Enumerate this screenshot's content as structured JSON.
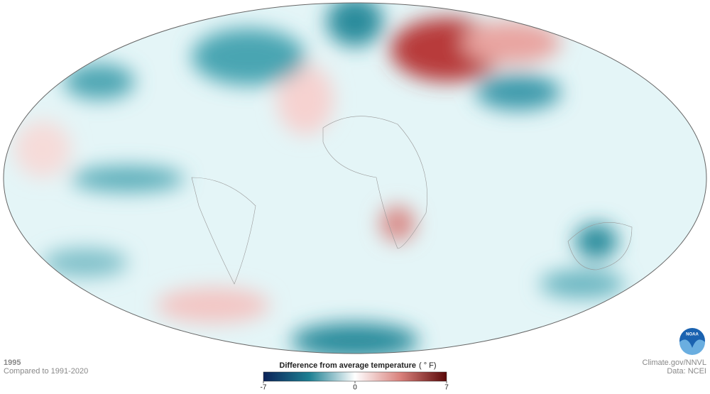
{
  "map": {
    "year": "1995",
    "baseline": "Compared to 1991-2020",
    "legend": {
      "title": "Difference from average temperature",
      "unit": "( ° F)",
      "min": -7,
      "max": 7,
      "ticks": [
        -7,
        0,
        7
      ]
    }
  },
  "credits": {
    "source": "Climate.gov/NNVL",
    "data": "Data: NCEI"
  },
  "logo": "NOAA"
}
